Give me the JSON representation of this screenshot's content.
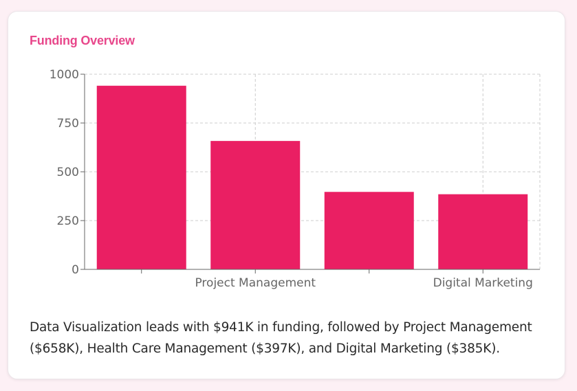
{
  "card": {
    "title": "Funding Overview",
    "summary": "Data Visualization leads with $941K in funding, followed by Project Management ($658K), Health Care Management ($397K), and Digital Marketing ($385K)."
  },
  "colors": {
    "accent": "#e8478b",
    "bar": "#ea1f63",
    "grid": "#cccccc",
    "axis": "#666666",
    "tick_text": "#666666"
  },
  "chart_data": {
    "type": "bar",
    "title": "",
    "xlabel": "",
    "ylabel": "",
    "categories": [
      "Data Visualization",
      "Project Management",
      "Health Care Management",
      "Digital Marketing"
    ],
    "values": [
      941,
      658,
      397,
      385
    ],
    "ylim": [
      0,
      1000
    ],
    "yticks": [
      0,
      250,
      500,
      750,
      1000
    ],
    "xtick_labels_shown": [
      "Project Management",
      "Digital Marketing"
    ],
    "grid": true
  }
}
